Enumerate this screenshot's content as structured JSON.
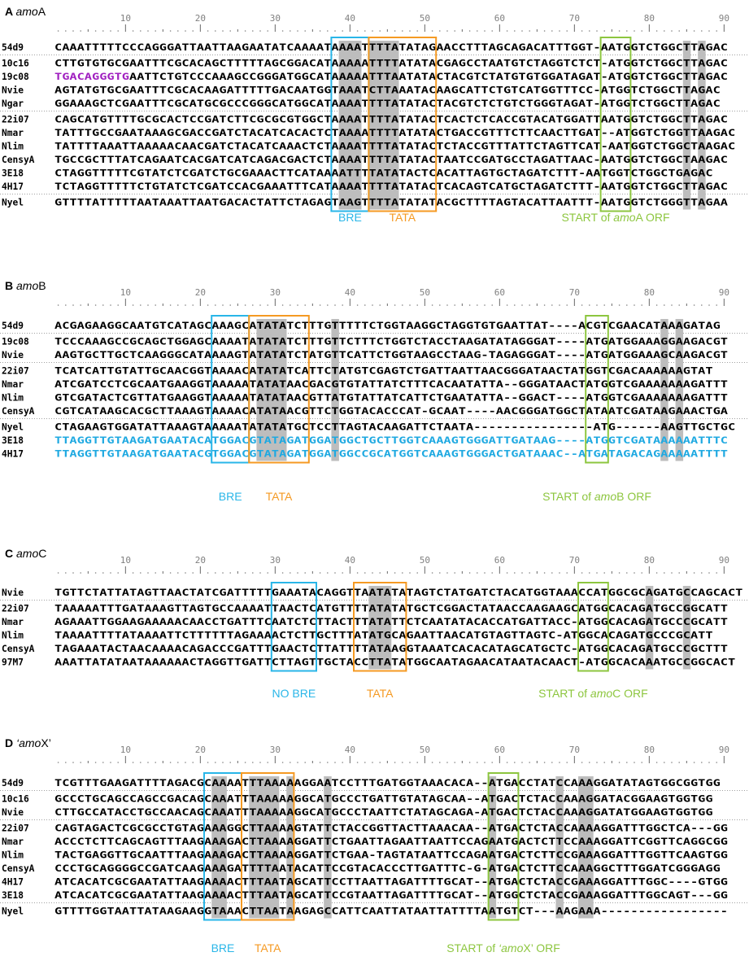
{
  "colors": {
    "shade": "#bdbdbd",
    "bre": "#29b6e8",
    "tata": "#f59a23",
    "start": "#8dc63f",
    "blue_text": "#1fa9e1",
    "purple_text": "#a020c0",
    "ruler": "#808080"
  },
  "panels": [
    {
      "letter": "A",
      "gene_prefix": "amo",
      "gene_suffix": "A",
      "ruler_ticks": [
        "10",
        "20",
        "30",
        "40",
        "50",
        "60",
        "70",
        "80",
        "90"
      ],
      "groups": [
        [
          {
            "name": "54d9",
            "seq": "CAAATTTTTCCCAGGGATTAATTAAGAATATCAAAATAAAATTTTATATAGAACCTTTAGCAGACATTTGGT-AATGGTCTGGCTTAGAC"
          }
        ],
        [
          {
            "name": "10c16",
            "seq": "CTTGTGTGCGAATTTCGCACAGCTTTTTAGCGGACATAAAAATTTTATATACGAGCCTAATGTCTAGGTCTCT-ATGGTCTGGCTTAGAC"
          },
          {
            "name": "19c08",
            "seq": "TGACAGGGTGAATTCTGTCCCAAAGCCGGGATGGCATAAAAATTTAATATACTACGTCTATGTGTGGATAGAT-ATGGTCTGGCTTAGAC"
          },
          {
            "name": "Nvie",
            "seq": "AGTATGTGCGAATTTCGCACAAGATTTTTGACAATGGTAAATCTTAAATACAAGCATTCTGTCATGGTTTCC-ATGGTCTGGCTTAGAC"
          },
          {
            "name": "Ngar",
            "seq": "GGAAAGCTCGAATTTCGCATGCGCCCGGGCATGGCATAAAATTTTATATACTACGTCTCTGTCTGGGTAGAT-ATGGTCTGGCTTAGAC"
          }
        ],
        [
          {
            "name": "22i07",
            "seq": "CAGCATGTTTTGCGCACTCCGATCTTCGCGCGTGGCTAAAATTTTATATACTCACTCTCACCGTACATGGATTAATGGTCTGGCTTAGAC"
          },
          {
            "name": "Nmar",
            "seq": "TATTTGCCGAATAAAGCGACCGATCTACATCACACTCTAAAATTTTATATACTGACCGTTTCTTCAACTTGAT--ATGGTCTGGTTAAGAC"
          },
          {
            "name": "Nlim",
            "seq": "TATTTTAAATTAAAAACAACGATCTACATCAAACTCTAAAATTTTATATACTCTACCGTTTATTCTAGTTCAT-AATGGTCTGGCTAAGAC"
          },
          {
            "name": "CensyA",
            "seq": "TGCCGCTTTATCAGAATCACGATCATCAGACGACTCTAAAATTTTATATACTAATCCGATGCCTAGATTAAC-AATGGTCTGGCTAAGAC"
          },
          {
            "name": "3E18",
            "seq": "CTAGGTTTTTCGTATCTCGATCTGCGAAACTTCATAAAATTTTATATACTCACATTAGTGCTAGATCTTT-AATGGTCTGGCTGAGAC"
          },
          {
            "name": "4H17",
            "seq": "TCTAGGTTTTTCTGTATCTCGATCCACGAAATTTCATAAAATTTTATATACTCACAGTCATGCTAGATCTTT-AATGGTCTGGCTTAGAC"
          }
        ],
        [
          {
            "name": "Nyel",
            "seq": "GTTTTATTTTTAATAAATTAATGACACTATTCTAGAGTAAGTTTTATATATACGCTTTTAGTACATTAATTT-AATGGTCTGGGTTAGAA"
          }
        ]
      ],
      "labels": [
        {
          "text": "BRE",
          "color": "bre"
        },
        {
          "text": "TATA",
          "color": "tata"
        },
        {
          "text": "START of ",
          "italic": "amo",
          "tail": "A ORF",
          "color": "start"
        }
      ]
    },
    {
      "letter": "B",
      "gene_prefix": "amo",
      "gene_suffix": "B",
      "ruler_ticks": [
        "10",
        "20",
        "30",
        "40",
        "50",
        "60",
        "70",
        "80",
        "90"
      ],
      "groups": [
        [
          {
            "name": "54d9",
            "seq": "ACGAGAAGGCAATGTCATAGCAAAGCATATATCTTTGTTTTTCTGGTAAGGCTAGGTGTGAATTAT----ACGTCGAACATAAAGATAG"
          }
        ],
        [
          {
            "name": "19c08",
            "seq": "TCCCAAAGCCGCAGCTGGAGCAAAATATATATCTTTGTTCTTTCTGGTCTACCTAAGATATAGGGAT----ATGATGGAAAGGAAGACGT"
          },
          {
            "name": "Nvie",
            "seq": "AAGTGCTTGCTCAAGGGCATAAAAGTATATATCTATGTTCATTCTGGTAAGCCTAAG-TAGAGGGAT----ATGATGGAAAGCAAGACGT"
          }
        ],
        [
          {
            "name": "22i07",
            "seq": "TCATCATTGTATTGCAACGGTAAAACATATATCATTCTATGTCGAGTCTGATTAATTAACGGGATAACTATGGTCGACAAAAAAGTAT"
          },
          {
            "name": "Nmar",
            "seq": "ATCGATCCTCGCAATGAAGGTAAAAATATATAACGACGTGTATTATCTTTCACAATATTA--GGGATAACTATGGTCGAAAAAAAGATTT"
          },
          {
            "name": "Nlim",
            "seq": "GTCGATACTCGTTATGAAGGTAAAAATATATAACGTTATGTATTATCATTCTGAATATTA--GGACT----ATGGTCGAAAAAAAGATTT"
          },
          {
            "name": "CensyA",
            "seq": "CGTCATAAGCACGCTTAAAGTAAAACATATAACGTTCTGGTACACCCAT-GCAAT----AACGGGATGGCTATAATCGATAAGAAACTGA"
          }
        ],
        [
          {
            "name": "Nyel",
            "seq": "CTAGAAGTGGATATTAAAGTAAAAATATATATGCTCCTTAGTACAAGATTCTAATA----------------ATG------AAGTTGCTGC"
          },
          {
            "name": "3E18",
            "seq": "TTAGGTTGTAAGATGAATACATGGACGTATAGATGGATGGCTGCTTGGTCAAAGTGGGATTGATAAG----ATGGTCGATAAAAAATTTC"
          },
          {
            "name": "4H17",
            "seq": "TTAGGTTGTAAGATGAATACGTGGACGTATAGATGGATGGCCGCATGGTCAAAGTGGGACTGATAAAC--ATGATAGACAGAAAAATTTT"
          }
        ]
      ],
      "labels": [
        {
          "text": "BRE",
          "color": "bre"
        },
        {
          "text": "TATA",
          "color": "tata"
        },
        {
          "text": "START of ",
          "italic": "amo",
          "tail": "B ORF",
          "color": "start"
        }
      ]
    },
    {
      "letter": "C",
      "gene_prefix": "amo",
      "gene_suffix": "C",
      "ruler_ticks": [
        "10",
        "20",
        "30",
        "40",
        "50",
        "60",
        "70",
        "80",
        "90"
      ],
      "groups": [
        [
          {
            "name": "Nvie",
            "seq": "TGTTCTATTATAGTTAACTATCGATTTTTGAAATACAGGTTAATATATAGTCTATGATCTACATGGTAAACCATGGCGCAGATGCCAGCACT"
          }
        ],
        [
          {
            "name": "22i07",
            "seq": "TAAAAATTTGATAAAGTTAGTGCCAAAATTAACTCATGTTTTATATATGCTCGGACTATAACCAAGAAGCATGGCACAGATGCCGGCATT"
          },
          {
            "name": "Nmar",
            "seq": "AGAAATTGGAAGAAAAACAACCTGATTTCAATCTCTTACTTTATATTCTCAATATACACCATGATTACC-ATGGCACAGATGCCCGCATT"
          },
          {
            "name": "Nlim",
            "seq": "TAAAATTTTATAAAATTCTTTTTTAGAAAACTCTTGCTTTATATGCAGAATTAACATGTAGTTAGTC-ATGGCACAGATGCCCGCATT"
          },
          {
            "name": "CensyA",
            "seq": "TAGAAATACTAACAAAACAGACCCGATTTGAACTCTTATTTTATAAGGTAAATCACACATAGCATGCTC-ATGGCACAGATGCCCGCTTT"
          },
          {
            "name": "97M7",
            "seq": "AAATTATATAATAAAAAACTAGGTTGATTCTTAGTTGCTACCTTATATGGCAATAGAACATAATACAACT-ATGGCACAAATGCCGGCACT"
          }
        ]
      ],
      "labels": [
        {
          "text": "NO BRE",
          "color": "bre"
        },
        {
          "text": "TATA",
          "color": "tata"
        },
        {
          "text": "START of ",
          "italic": "amo",
          "tail": "C ORF",
          "color": "start"
        }
      ]
    },
    {
      "letter": "D",
      "gene_prefix": "‘amo",
      "gene_suffix": "X’",
      "ruler_ticks": [
        "10",
        "20",
        "30",
        "40",
        "50",
        "60",
        "70",
        "80",
        "90"
      ],
      "groups": [
        [
          {
            "name": "54d9",
            "seq": "TCGTTTGAAGATTTTAGACGCAAAATTTAAAAAGGAATCCTTTGATGGTAAACACA--ATGACCTATCCAAAGGATATAGTGGCGGTGG"
          }
        ],
        [
          {
            "name": "10c16",
            "seq": "GCCCTGCAGCCAGCCGACAGCAAATTTAAAAAGGCATGCCCTGATTGTATAGCAA--ATGACTCTACCAAAGGATACGGAAGTGGTGG"
          },
          {
            "name": "Nvie",
            "seq": "CTTGCCATACCTGCCAACAGCAAATTTAAAAAGGCATGCCCTAATTCTATAGCAGA-ATGACTCTACCAAAGGATATGGAAGTGGTGG"
          }
        ],
        [
          {
            "name": "22i07",
            "seq": "CAGTAGACTCGCGCCTGTAGAAAGGCTTAAAAGTATTCTACCGGTTACTTAAACAA--ATGACTCTACCAAAAGGATTTGGCTCA---GG"
          },
          {
            "name": "Nmar",
            "seq": "ACCCTCTTCAGCAGTTTAAGAAAGACTTAAAAGGATTCTGAATTAGAATTAATTCCAGAATGACTCTTCCAAAGGATTCGGTTCAGGCGG"
          },
          {
            "name": "Nlim",
            "seq": "TACTGAGGTTGCAATTTAAGAAAGACTTAAAAGGATTCTGAA-TAGTATAATTCCAGAATGACTCTTCCGAAAGGATTTGGTTCAAGTGG"
          },
          {
            "name": "CensyA",
            "seq": "CCCTGCAGGGGCCGATCAAGAAAGATTTTAATACATTCCGTACACCCTTGATTTC-G-ATGACTCTTCCAAAGGCTTTGGATCGGGAGG"
          },
          {
            "name": "4H17",
            "seq": "ATCACATCGCGAATATTAAGAAAACTTTAATAGCATTCCTTAATTAGATTTTGCAT--ATGACTCTACCGAAAGGATTTGGC----GTGG"
          },
          {
            "name": "3E18",
            "seq": "ATCACATCGCGAATATTAAGAAAACTTTAATAGCATTCCGTAATTAGATTTTGCAT--ATGGCTCTACCGAAAGGATTTGGCAGT---GG"
          }
        ],
        [
          {
            "name": "Nyel",
            "seq": "GTTTTGGTAATTATAAGAAGGTAAACTTAATAAGAGCCATTCAATTATAATTATTTTAATGTCT---AAGAAA-----------------"
          }
        ]
      ],
      "labels": [
        {
          "text": "BRE",
          "color": "bre"
        },
        {
          "text": "TATA",
          "color": "tata"
        },
        {
          "text": "START of ",
          "italic": "‘amo",
          "tail": "X’ ORF",
          "color": "start"
        }
      ]
    }
  ]
}
